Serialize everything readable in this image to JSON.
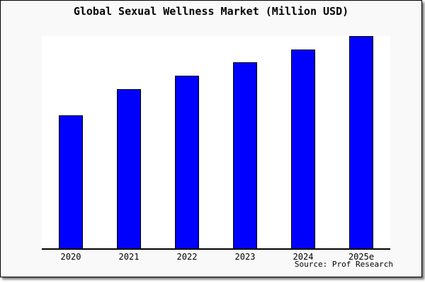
{
  "title": "Global Sexual Wellness Market (Million USD)",
  "source": "Source: Prof Research",
  "colors": {
    "bar_fill": "#0000ff",
    "bar_border": "#000000",
    "frame_background": "#f9f9f9",
    "plot_background": "#ffffff",
    "axis_line": "#000000"
  },
  "chart_data": {
    "type": "bar",
    "title": "Global Sexual Wellness Market (Million USD)",
    "categories": [
      "2020",
      "2021",
      "2022",
      "2023",
      "2024",
      "2025e"
    ],
    "values": [
      100,
      120,
      130,
      140,
      150,
      160
    ],
    "values_note": "No y-axis or value labels shown; values estimated from relative bar heights with 2020 indexed to 100",
    "xlabel": "",
    "ylabel": "",
    "ylim": [
      0,
      160
    ],
    "grid": false,
    "legend": "none",
    "bar_color": "#0000ff",
    "bar_border_color": "#000000",
    "source": "Source: Prof Research"
  }
}
